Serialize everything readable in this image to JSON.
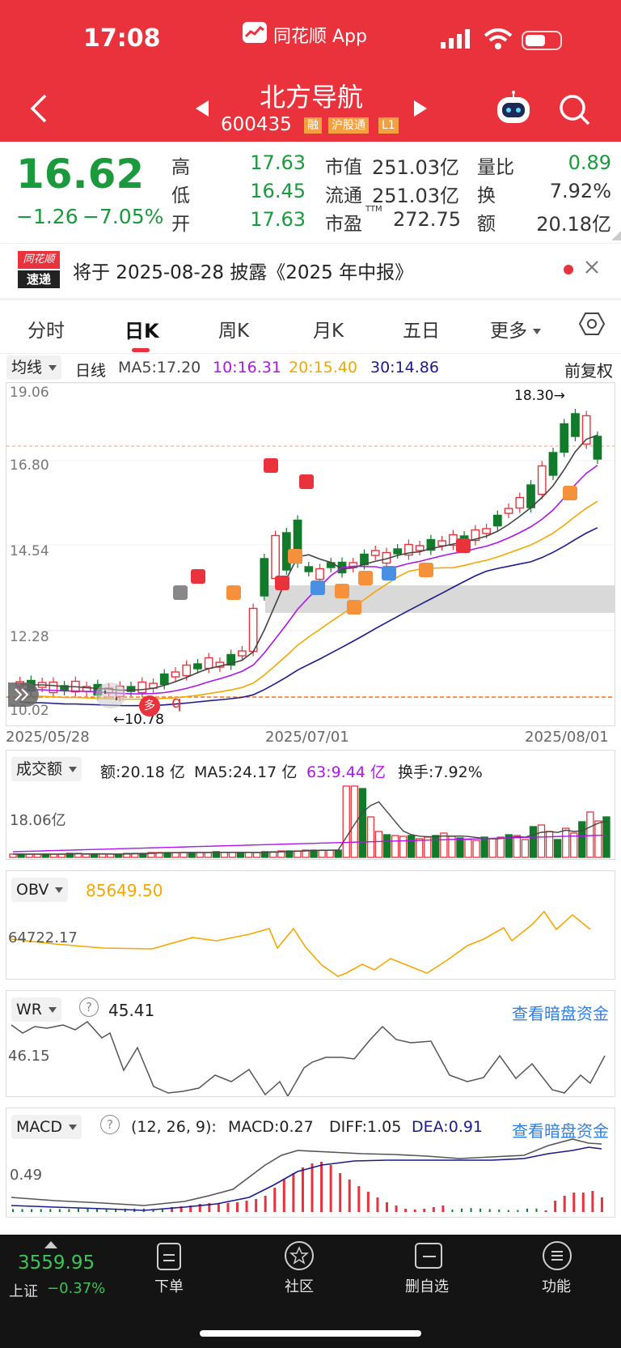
{
  "status_bar": {
    "time": "17:08",
    "app": "同花顺 App"
  },
  "header": {
    "title": "北方导航",
    "code": "600435",
    "badges": [
      "融",
      "沪股通",
      "L1"
    ]
  },
  "quote": {
    "price": "16.62",
    "change": "−1.26",
    "change_pct": "−7.05%",
    "rows": [
      {
        "k1": "高",
        "v1": "17.63",
        "k2": "市值",
        "v2": "251.03亿",
        "k3": "量比",
        "v3": "0.89"
      },
      {
        "k1": "低",
        "v1": "16.45",
        "k2": "流通",
        "v2": "251.03亿",
        "k3": "换",
        "v3": "7.92%"
      },
      {
        "k1": "开",
        "v1": "17.63",
        "k2": "市盈",
        "sup": "TTM",
        "v2": "272.75",
        "k3": "额",
        "v3": "20.18亿"
      }
    ]
  },
  "notice": {
    "logo_top": "同花顺",
    "logo_bottom": "速递",
    "text": "将于 2025-08-28 披露《2025 年中报》"
  },
  "tabs": [
    "分时",
    "日K",
    "周K",
    "月K",
    "五日",
    "更多"
  ],
  "active_tab": 1,
  "ma_bar": {
    "selector": "均线",
    "period": "日线",
    "ma5": "MA5:17.20",
    "ma10": "10:16.31",
    "ma20": "20:15.40",
    "ma30": "30:14.86",
    "adjust": "前复权"
  },
  "colors": {
    "up": "#e9323c",
    "down": "#127a2b",
    "ma5": "#444444",
    "ma10": "#b014ee",
    "ma20": "#f7a600",
    "ma30": "#1a1a8e",
    "link": "#2f7fe6"
  },
  "main_chart": {
    "y_labels": [
      "19.06",
      "16.80",
      "14.54",
      "12.28",
      "10.02"
    ],
    "x_labels": [
      "2025/05/28",
      "2025/07/01",
      "2025/08/01"
    ],
    "high_marker": "18.30→",
    "low_marker": "←10.78",
    "marker_labels": [
      "多",
      "q"
    ]
  },
  "volume": {
    "selector": "成交额",
    "amount": "额:20.18 亿",
    "ma5": "MA5:24.17 亿",
    "ma63": "63:9.44 亿",
    "turnover": "换手:7.92%",
    "y_label": "18.06亿"
  },
  "obv": {
    "selector": "OBV",
    "value": "85649.50",
    "y_label": "64722.17"
  },
  "wr": {
    "selector": "WR",
    "value": "45.41",
    "y_label": "46.15",
    "link": "查看暗盘资金"
  },
  "macd": {
    "selector": "MACD",
    "params": "(12, 26, 9):",
    "macd": "MACD:0.27",
    "diff": "DIFF:1.05",
    "dea": "DEA:0.91",
    "y_label": "0.49",
    "link": "查看暗盘资金"
  },
  "bottom": {
    "index_value": "3559.95",
    "index_name": "上证",
    "index_change": "−0.37%",
    "nav": [
      "下单",
      "社区",
      "删自选",
      "功能"
    ]
  }
}
